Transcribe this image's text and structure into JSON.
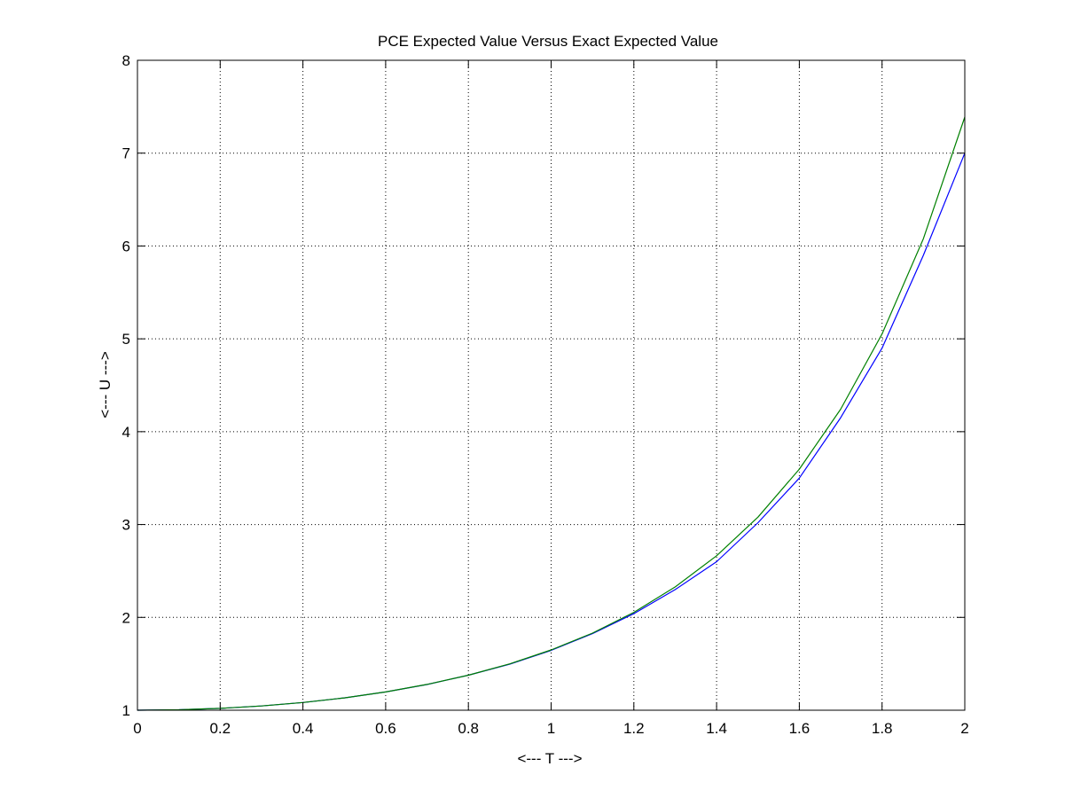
{
  "chart_data": {
    "type": "line",
    "title": "PCE Expected Value Versus Exact Expected Value",
    "xlabel": "<--- T --->",
    "ylabel": "<--- U --->",
    "xlim": [
      0,
      2
    ],
    "ylim": [
      1,
      8
    ],
    "xticks": [
      "0",
      "0.2",
      "0.4",
      "0.6",
      "0.8",
      "1",
      "1.2",
      "1.4",
      "1.6",
      "1.8",
      "2"
    ],
    "yticks": [
      "1",
      "2",
      "3",
      "4",
      "5",
      "6",
      "7",
      "8"
    ],
    "grid": true,
    "legend": "none",
    "series": [
      {
        "color": "#0000ff",
        "x": [
          0,
          0.1,
          0.2,
          0.3,
          0.4,
          0.5,
          0.6,
          0.7,
          0.8,
          0.9,
          1.0,
          1.1,
          1.2,
          1.3,
          1.4,
          1.5,
          1.6,
          1.7,
          1.8,
          1.9,
          2.0
        ],
        "y": [
          1.0,
          1.005,
          1.02,
          1.046,
          1.083,
          1.133,
          1.197,
          1.277,
          1.377,
          1.497,
          1.645,
          1.825,
          2.04,
          2.3,
          2.6,
          3.02,
          3.5,
          4.15,
          4.9,
          5.9,
          7.0
        ]
      },
      {
        "color": "#008000",
        "x": [
          0,
          0.1,
          0.2,
          0.3,
          0.4,
          0.5,
          0.6,
          0.7,
          0.8,
          0.9,
          1.0,
          1.1,
          1.2,
          1.3,
          1.4,
          1.5,
          1.6,
          1.7,
          1.8,
          1.9,
          2.0
        ],
        "y": [
          1.0,
          1.005,
          1.02,
          1.046,
          1.083,
          1.133,
          1.197,
          1.278,
          1.377,
          1.499,
          1.649,
          1.831,
          2.054,
          2.328,
          2.664,
          3.08,
          3.597,
          4.242,
          5.053,
          6.079,
          7.389
        ]
      }
    ]
  }
}
